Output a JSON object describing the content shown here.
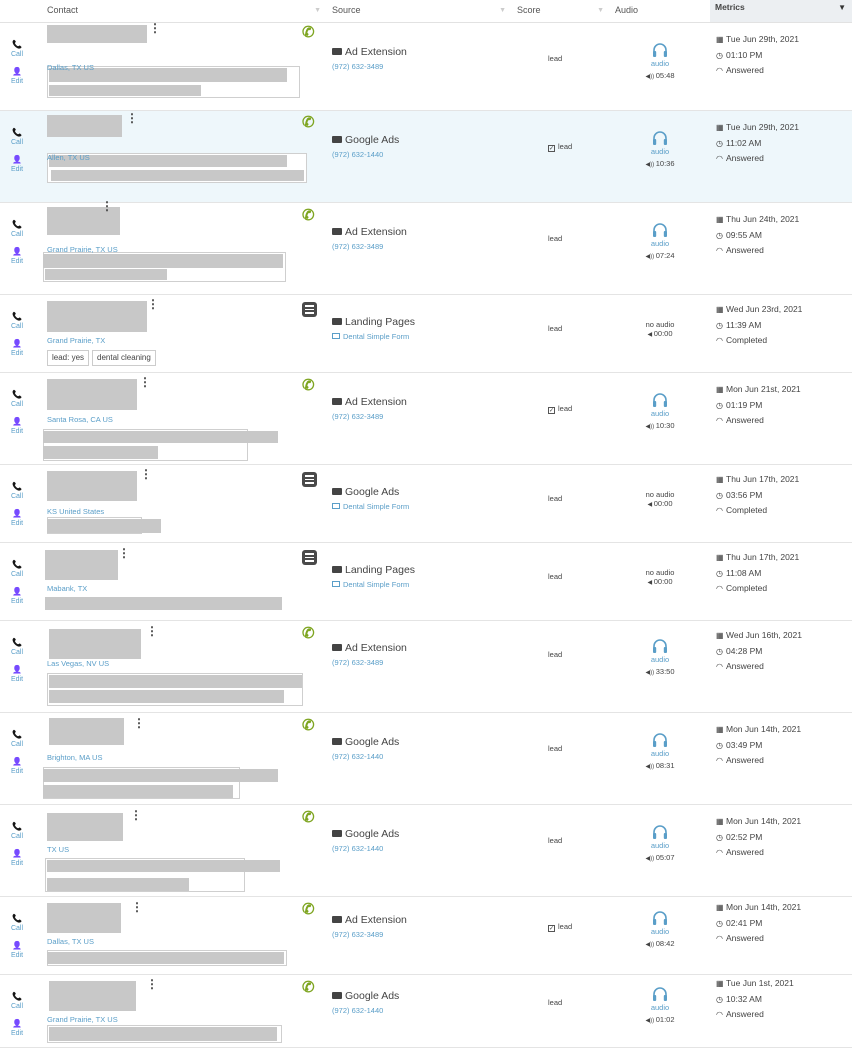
{
  "columns": {
    "contact": "Contact",
    "source": "Source",
    "score": "Score",
    "audio": "Audio",
    "metrics": "Metrics"
  },
  "labels": {
    "call": "Call",
    "edit": "Edit",
    "audio": "audio",
    "no_audio": "no audio",
    "lead": "lead"
  },
  "icons": {
    "call_type": "incoming-call-icon",
    "form_type": "form-icon",
    "audio": "headphones-icon",
    "calendar": "calendar-icon",
    "clock": "clock-icon",
    "status": "handset-icon"
  },
  "colors": {
    "accent_blue": "#5a9ec8",
    "call_green": "#7ea521",
    "highlight_row": "#eef7fb",
    "metrics_header": "#eceff2"
  },
  "rows": [
    {
      "location": "Dallas, TX US",
      "type": "call",
      "source": "Ad Extension",
      "source_detail": "(972) 632-3489",
      "score": "lead",
      "score_checked": false,
      "has_audio": true,
      "duration": "05:48",
      "date": "Tue Jun 29th, 2021",
      "time": "01:10 PM",
      "status": "Answered",
      "tags": []
    },
    {
      "location": "Allen, TX US",
      "type": "call",
      "source": "Google Ads",
      "source_detail": "(972) 632-1440",
      "score": "lead",
      "score_checked": true,
      "has_audio": true,
      "duration": "10:36",
      "date": "Tue Jun 29th, 2021",
      "time": "11:02 AM",
      "status": "Answered",
      "tags": []
    },
    {
      "location": "Grand Prairie, TX US",
      "type": "call",
      "source": "Ad Extension",
      "source_detail": "(972) 632-3489",
      "score": "lead",
      "score_checked": false,
      "has_audio": true,
      "duration": "07:24",
      "date": "Thu Jun 24th, 2021",
      "time": "09:55 AM",
      "status": "Answered",
      "tags": []
    },
    {
      "location": "Grand Prairie, TX",
      "type": "form",
      "source": "Landing Pages",
      "source_detail": "Dental Simple Form",
      "score": "lead",
      "score_checked": false,
      "has_audio": false,
      "duration": "00:00",
      "date": "Wed Jun 23rd, 2021",
      "time": "11:39 AM",
      "status": "Completed",
      "tags": [
        "lead: yes",
        "dental cleaning"
      ]
    },
    {
      "location": "Santa Rosa, CA US",
      "type": "call",
      "source": "Ad Extension",
      "source_detail": "(972) 632-3489",
      "score": "lead",
      "score_checked": true,
      "has_audio": true,
      "duration": "10:30",
      "date": "Mon Jun 21st, 2021",
      "time": "01:19 PM",
      "status": "Answered",
      "tags": []
    },
    {
      "location": "KS United States",
      "type": "form",
      "source": "Google Ads",
      "source_detail": "Dental Simple Form",
      "score": "lead",
      "score_checked": false,
      "has_audio": false,
      "duration": "00:00",
      "date": "Thu Jun 17th, 2021",
      "time": "03:56 PM",
      "status": "Completed",
      "tags": []
    },
    {
      "location": "Mabank, TX",
      "type": "form",
      "source": "Landing Pages",
      "source_detail": "Dental Simple Form",
      "score": "lead",
      "score_checked": false,
      "has_audio": false,
      "duration": "00:00",
      "date": "Thu Jun 17th, 2021",
      "time": "11:08 AM",
      "status": "Completed",
      "tags": []
    },
    {
      "location": "Las Vegas, NV US",
      "type": "call",
      "source": "Ad Extension",
      "source_detail": "(972) 632-3489",
      "score": "lead",
      "score_checked": false,
      "has_audio": true,
      "duration": "33:50",
      "date": "Wed Jun 16th, 2021",
      "time": "04:28 PM",
      "status": "Answered",
      "tags": []
    },
    {
      "location": "Brighton, MA US",
      "type": "call",
      "source": "Google Ads",
      "source_detail": "(972) 632-1440",
      "score": "lead",
      "score_checked": false,
      "has_audio": true,
      "duration": "08:31",
      "date": "Mon Jun 14th, 2021",
      "time": "03:49 PM",
      "status": "Answered",
      "tags": []
    },
    {
      "location": "TX US",
      "type": "call",
      "source": "Google Ads",
      "source_detail": "(972) 632-1440",
      "score": "lead",
      "score_checked": false,
      "has_audio": true,
      "duration": "05:07",
      "date": "Mon Jun 14th, 2021",
      "time": "02:52 PM",
      "status": "Answered",
      "tags": []
    },
    {
      "location": "Dallas, TX US",
      "type": "call",
      "source": "Ad Extension",
      "source_detail": "(972) 632-3489",
      "score": "lead",
      "score_checked": true,
      "has_audio": true,
      "duration": "08:42",
      "date": "Mon Jun 14th, 2021",
      "time": "02:41 PM",
      "status": "Answered",
      "tags": []
    },
    {
      "location": "Grand Prairie, TX US",
      "type": "call",
      "source": "Google Ads",
      "source_detail": "(972) 632-1440",
      "score": "lead",
      "score_checked": false,
      "has_audio": true,
      "duration": "01:02",
      "date": "Tue Jun 1st, 2021",
      "time": "10:32 AM",
      "status": "Answered",
      "tags": []
    }
  ]
}
